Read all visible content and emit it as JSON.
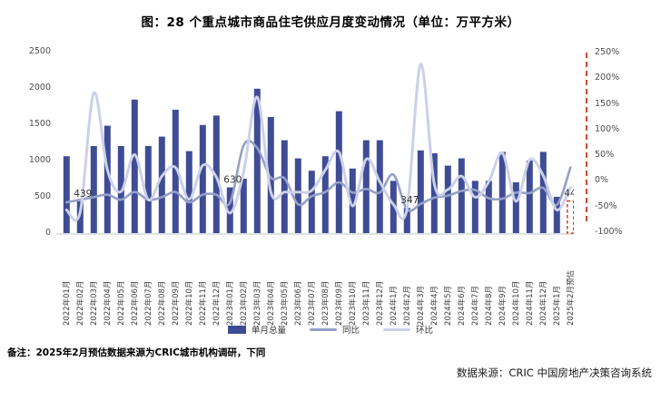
{
  "title": "图：28 个重点城市商品住宅供应月度变动情况（单位：万平方米）",
  "footnote": "备注：2025年2月预估数据来源为CRIC城市机构调研，下同",
  "source": "数据来源：CRIC 中国房地产决策咨询系统",
  "legend": {
    "items": [
      {
        "label": "单月总量",
        "type": "bar",
        "color": "#3F4C95"
      },
      {
        "label": "同比",
        "type": "line",
        "color": "#95A0C8"
      },
      {
        "label": "环比",
        "type": "line",
        "color": "#CBD1E8"
      }
    ]
  },
  "colors": {
    "bar": "#3F4C95",
    "yoy_line": "#95A0C8",
    "mom_line": "#CBD1E8",
    "forecast": "#D0492F",
    "axis_line": "#d9d9d9"
  },
  "chart_data": {
    "type": "bar",
    "subtype": "bar+line combo, last bar is dashed forecast",
    "title": "图：28 个重点城市商品住宅供应月度变动情况（单位：万平方米）",
    "unit": "万平方米",
    "grid": "off",
    "legend_position": "bottom",
    "categories": [
      "2022年01月",
      "2022年02月",
      "2022年03月",
      "2022年04月",
      "2022年05月",
      "2022年06月",
      "2022年07月",
      "2022年08月",
      "2022年09月",
      "2022年10月",
      "2022年11月",
      "2022年12月",
      "2023年01月",
      "2023年02月",
      "2023年03月",
      "2023年04月",
      "2023年05月",
      "2023年06月",
      "2023年07月",
      "2023年08月",
      "2023年09月",
      "2023年10月",
      "2023年11月",
      "2023年12月",
      "2024年1月",
      "2024年2月",
      "2024年3月",
      "2024年4月",
      "2024年5月",
      "2024年6月",
      "2024年7月",
      "2024年8月",
      "2024年9月",
      "2024年10月",
      "2024年11月",
      "2024年12月",
      "2025年1月",
      "2025年2月预估"
    ],
    "series": [
      {
        "name": "单月总量",
        "type": "bar",
        "axis": "left",
        "values": [
          1060,
          439,
          1200,
          1480,
          1200,
          1840,
          1200,
          1330,
          1700,
          1130,
          1490,
          1620,
          630,
          750,
          1990,
          1600,
          1280,
          1030,
          860,
          1060,
          1680,
          890,
          1280,
          1280,
          720,
          347,
          1140,
          1100,
          930,
          1030,
          720,
          720,
          1120,
          700,
          1000,
          1120,
          500,
          443
        ]
      },
      {
        "name": "同比",
        "type": "line",
        "axis": "right",
        "unit": "%",
        "values": [
          -40,
          -35,
          -30,
          -25,
          -35,
          -20,
          -35,
          -30,
          -20,
          -40,
          -25,
          -25,
          -41,
          71,
          66,
          8,
          7,
          -44,
          -28,
          -20,
          -1,
          -21,
          -14,
          -21,
          14,
          -54,
          -43,
          -31,
          -27,
          -18,
          -16,
          -32,
          -33,
          -21,
          -22,
          -12,
          -45,
          28
        ]
      },
      {
        "name": "环比",
        "type": "line",
        "axis": "right",
        "unit": "%",
        "values": [
          -55,
          -59,
          173,
          23,
          -19,
          53,
          -35,
          11,
          28,
          -34,
          32,
          9,
          -61,
          19,
          165,
          -20,
          -20,
          -20,
          -17,
          23,
          58,
          -47,
          44,
          0,
          -44,
          -52,
          229,
          -4,
          -15,
          11,
          -30,
          0,
          56,
          -38,
          43,
          12,
          -55,
          -11
        ]
      }
    ],
    "left_axis": {
      "ticks": [
        "2500",
        "2000",
        "1500",
        "1000",
        "500",
        "0"
      ],
      "min": 0,
      "max": 2500
    },
    "right_axis": {
      "ticks": [
        "250%",
        "200%",
        "150%",
        "100%",
        "50%",
        "0%",
        "-50%",
        "-100%"
      ],
      "min": -100,
      "max": 250
    },
    "annotations": [
      {
        "index": 1,
        "text": "439"
      },
      {
        "index": 12,
        "text": "630"
      },
      {
        "index": 25,
        "text": "347"
      },
      {
        "index": 37,
        "text": "443"
      }
    ]
  }
}
